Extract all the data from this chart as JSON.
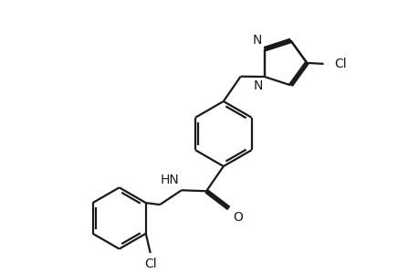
{
  "background_color": "#ffffff",
  "line_color": "#1a1a1a",
  "line_width": 1.6,
  "font_size": 10,
  "fig_width": 4.6,
  "fig_height": 3.0,
  "dpi": 100,
  "xlim": [
    0,
    9.2
  ],
  "ylim": [
    0,
    6.0
  ]
}
